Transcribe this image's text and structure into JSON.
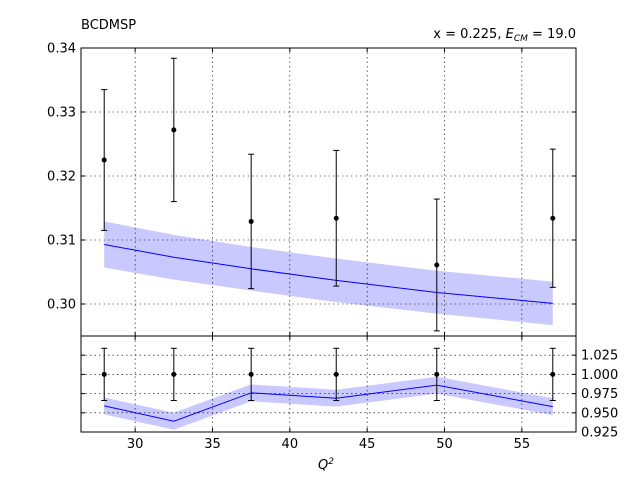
{
  "chart_data": [
    {
      "type": "line",
      "panel": "main",
      "title": "BCDMSP",
      "annotation": {
        "prefix": "x = 0.225, ",
        "e_symbol": "E",
        "e_subscript": "CM",
        "suffix": " = 19.0"
      },
      "xlim": [
        26.5,
        58.5
      ],
      "ylim": [
        0.295,
        0.34
      ],
      "yticks": [
        0.3,
        0.31,
        0.32,
        0.33,
        0.34
      ],
      "ytick_labels": [
        "0.30",
        "0.31",
        "0.32",
        "0.33",
        "0.34"
      ],
      "grid": true,
      "theory": {
        "x": [
          28.0,
          32.5,
          37.5,
          43.0,
          49.5,
          57.0
        ],
        "central": [
          0.3093,
          0.3073,
          0.3055,
          0.3037,
          0.3018,
          0.3001
        ],
        "lower": [
          0.3057,
          0.3038,
          0.3021,
          0.3003,
          0.2985,
          0.2967
        ],
        "upper": [
          0.3129,
          0.3108,
          0.3089,
          0.3071,
          0.3052,
          0.3035
        ],
        "line_color": "#0000ff",
        "band_color": "#c9c9ff"
      },
      "data_points": {
        "x": [
          28.0,
          32.5,
          37.5,
          43.0,
          49.5,
          57.0
        ],
        "y": [
          0.3225,
          0.3272,
          0.3129,
          0.3134,
          0.3061,
          0.3134
        ],
        "err": [
          0.011,
          0.0112,
          0.0105,
          0.0106,
          0.0103,
          0.0108
        ],
        "color": "#000000"
      }
    },
    {
      "type": "line",
      "panel": "ratio",
      "xlabel": "Q",
      "xlabel_sup": "2",
      "xlim": [
        26.5,
        58.5
      ],
      "ylim": [
        0.925,
        1.05
      ],
      "xticks": [
        30,
        35,
        40,
        45,
        50,
        55
      ],
      "yticks": [
        0.925,
        0.95,
        0.975,
        1.0,
        1.025
      ],
      "ytick_labels": [
        "0.925",
        "0.950",
        "0.975",
        "1.000",
        "1.025"
      ],
      "grid": true,
      "theory": {
        "x": [
          28.0,
          32.5,
          37.5,
          43.0,
          49.5,
          57.0
        ],
        "central": [
          0.959,
          0.939,
          0.976,
          0.969,
          0.986,
          0.958
        ],
        "lower": [
          0.948,
          0.928,
          0.965,
          0.958,
          0.975,
          0.947
        ],
        "upper": [
          0.97,
          0.95,
          0.987,
          0.98,
          0.997,
          0.969
        ]
      },
      "data_points": {
        "x": [
          28.0,
          32.5,
          37.5,
          43.0,
          49.5,
          57.0
        ],
        "y": [
          1.0,
          1.0,
          1.0,
          1.0,
          1.0,
          1.0
        ],
        "err": [
          0.034,
          0.034,
          0.034,
          0.034,
          0.034,
          0.034
        ]
      }
    }
  ]
}
